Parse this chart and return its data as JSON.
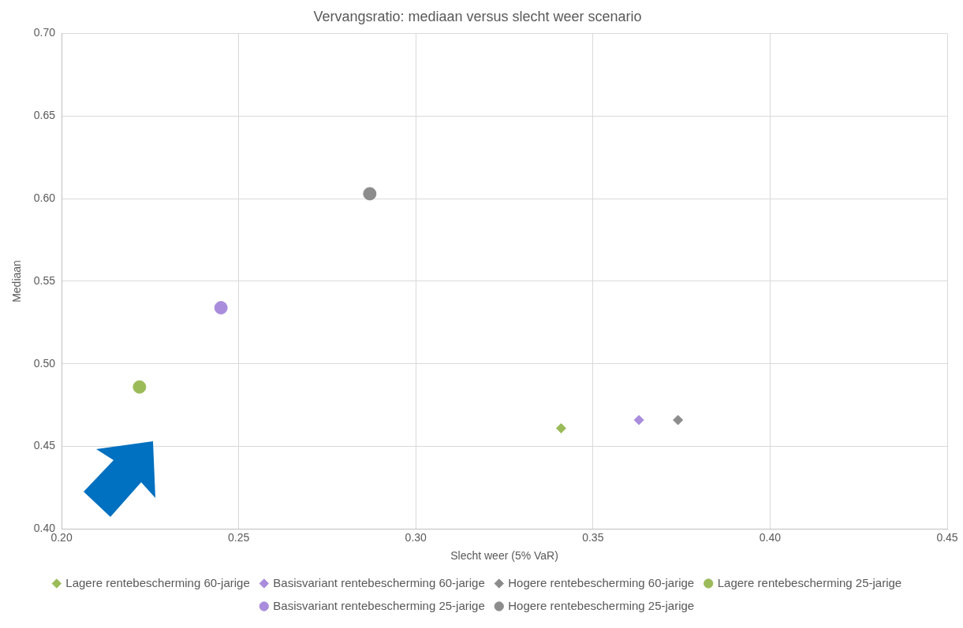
{
  "chart_data": {
    "type": "scatter",
    "title": "Vervangsratio: mediaan versus slecht weer scenario",
    "xlabel": "Slecht weer (5% VaR)",
    "ylabel": "Mediaan",
    "xlim": [
      0.2,
      0.45
    ],
    "xticks": [
      {
        "value": 0.2,
        "label": "0.20"
      },
      {
        "value": 0.25,
        "label": "0.25"
      },
      {
        "value": 0.3,
        "label": "0.30"
      },
      {
        "value": 0.35,
        "label": "0.35"
      },
      {
        "value": 0.4,
        "label": "0.40"
      },
      {
        "value": 0.45,
        "label": "0.45"
      }
    ],
    "ylim": [
      0.4,
      0.7
    ],
    "yticks": [
      {
        "value": 0.4,
        "label": "0.40"
      },
      {
        "value": 0.45,
        "label": "0.45"
      },
      {
        "value": 0.5,
        "label": "0.50"
      },
      {
        "value": 0.55,
        "label": "0.55"
      },
      {
        "value": 0.6,
        "label": "0.60"
      },
      {
        "value": 0.65,
        "label": "0.65"
      },
      {
        "value": 0.7,
        "label": "0.70"
      }
    ],
    "grid": true,
    "legend": "bottom",
    "series": [
      {
        "name": "Lagere rentebescherming 60-jarige",
        "color": "#9bbb59",
        "marker": "diamond",
        "x": [
          0.341
        ],
        "values": [
          0.461
        ]
      },
      {
        "name": "Basisvariant rentebescherming 60-jarige",
        "color": "#a98ddc",
        "marker": "diamond",
        "x": [
          0.363
        ],
        "values": [
          0.466
        ]
      },
      {
        "name": "Hogere rentebescherming 60-jarige",
        "color": "#8c8c8c",
        "marker": "diamond",
        "x": [
          0.374
        ],
        "values": [
          0.466
        ]
      },
      {
        "name": "Lagere rentebescherming 25-jarige",
        "color": "#9bbb59",
        "marker": "circle",
        "x": [
          0.222
        ],
        "values": [
          0.486
        ]
      },
      {
        "name": "Basisvariant rentebescherming 25-jarige",
        "color": "#a98ddc",
        "marker": "circle",
        "x": [
          0.245
        ],
        "values": [
          0.534
        ]
      },
      {
        "name": "Hogere rentebescherming 25-jarige",
        "color": "#8c8c8c",
        "marker": "circle",
        "x": [
          0.287
        ],
        "values": [
          0.603
        ]
      }
    ]
  }
}
